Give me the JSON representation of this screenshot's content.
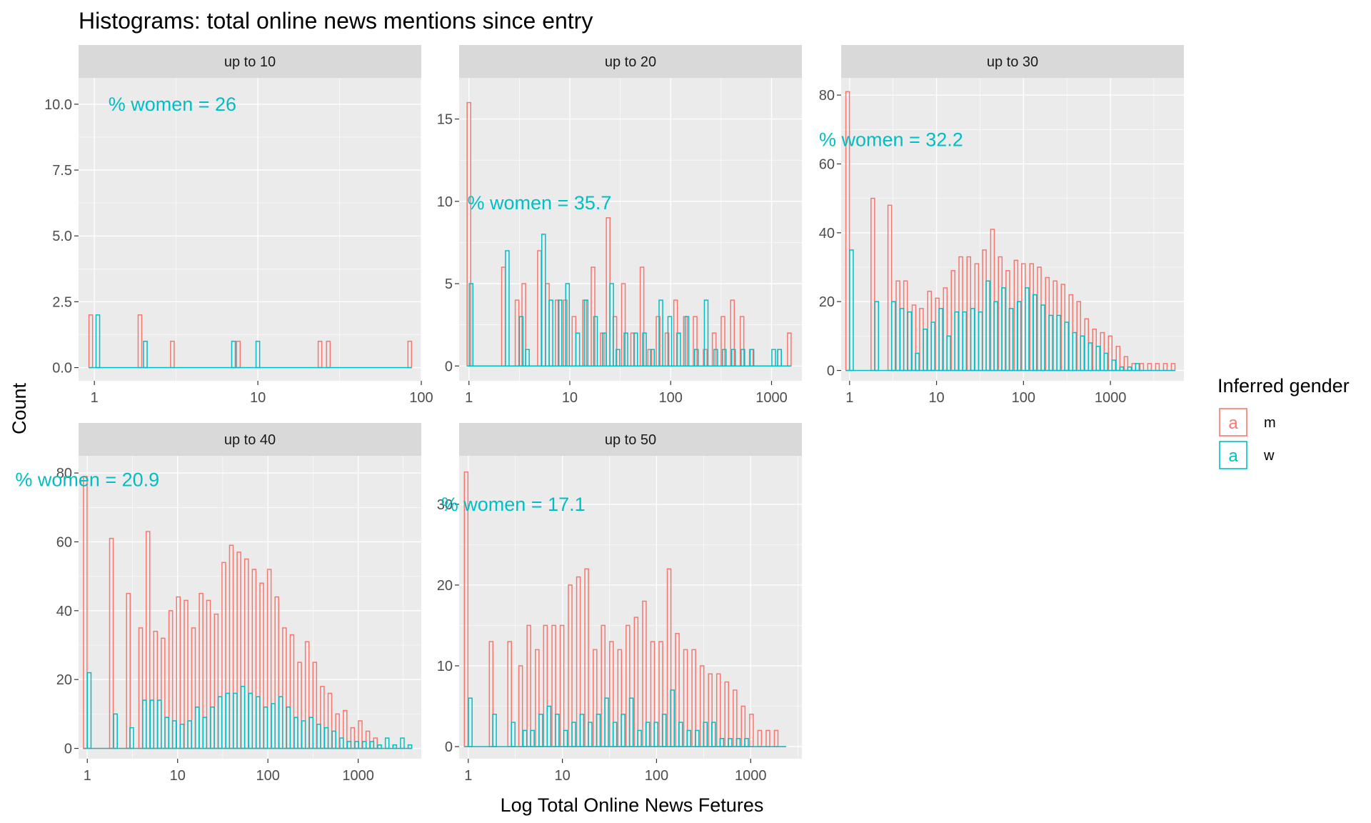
{
  "colors": {
    "m": "#F8766D",
    "w": "#00BFC4"
  },
  "chart_data": {
    "type": "bar",
    "title": "Histograms: total online news mentions since entry",
    "xlabel": "Log Total Online News Fetures",
    "ylabel": "Count",
    "x_scale": "log10",
    "grid": true,
    "legend": {
      "title": "Inferred gender",
      "position": "right",
      "key_glyph": "a",
      "entries": [
        {
          "label": "m",
          "key": "m"
        },
        {
          "label": "w",
          "key": "w"
        }
      ]
    },
    "panels": [
      {
        "strip": "up to 10",
        "annotation": "% women = 26",
        "annotation_at": [
          3,
          10.0
        ],
        "xlim": [
          0.8,
          100
        ],
        "ylim": [
          -0.5,
          11
        ],
        "y_ticks": [
          0.0,
          2.5,
          5.0,
          7.5,
          10.0
        ],
        "y_tick_labels": [
          "0.0",
          "2.5",
          "5.0",
          "7.5",
          "10.0"
        ],
        "x_ticks": [
          1,
          10,
          100
        ],
        "x_tick_labels": [
          "1",
          "10",
          "100"
        ],
        "series": [
          {
            "name": "m",
            "x": [
              0.95,
              1.9,
              3.0,
              7.6,
              24,
              27,
              85
            ],
            "values": [
              2,
              2,
              1,
              1,
              1,
              1,
              1
            ]
          },
          {
            "name": "w",
            "x": [
              1.05,
              2.05,
              7.1,
              10,
              10.5
            ],
            "values": [
              2,
              1,
              1,
              1,
              0
            ]
          }
        ]
      },
      {
        "strip": "up to 20",
        "annotation": "% women = 35.7",
        "annotation_at": [
          5,
          9.9
        ],
        "xlim": [
          0.8,
          2000
        ],
        "ylim": [
          -0.9,
          17.5
        ],
        "y_ticks": [
          0,
          5,
          10,
          15
        ],
        "y_tick_labels": [
          "0",
          "5",
          "10",
          "15"
        ],
        "x_ticks": [
          1,
          10,
          100,
          1000
        ],
        "x_tick_labels": [
          "1",
          "10",
          "100",
          "1000"
        ],
        "series": [
          {
            "name": "m",
            "x": [
              1,
              2.2,
              3,
              3.5,
              5,
              6,
              7.5,
              9,
              11,
              14,
              17,
              21,
              24,
              28,
              34,
              42,
              52,
              62,
              75,
              92,
              112,
              140,
              175,
              220,
              270,
              330,
              410,
              510,
              630,
              780,
              950,
              1200,
              1500
            ],
            "values": [
              16,
              6,
              4,
              5,
              7,
              5,
              4,
              4,
              3,
              4,
              6,
              2,
              9,
              3,
              5,
              2,
              6,
              1,
              3,
              2,
              4,
              3,
              3,
              1,
              2,
              3,
              4,
              3,
              1,
              0,
              0,
              1,
              2
            ]
          },
          {
            "name": "w",
            "x": [
              1.05,
              2.4,
              3.3,
              3.8,
              5.5,
              6.5,
              8,
              9.5,
              12,
              14.5,
              18,
              22,
              26,
              30,
              36,
              45,
              55,
              66,
              80,
              98,
              120,
              145,
              180,
              225,
              280,
              340,
              420,
              520,
              640,
              1050,
              1200
            ],
            "values": [
              5,
              7,
              3,
              1,
              8,
              4,
              4,
              5,
              2,
              4,
              3,
              2,
              5,
              1,
              2,
              2,
              2,
              1,
              4,
              3,
              2,
              3,
              1,
              4,
              1,
              1,
              1,
              1,
              1,
              1,
              1
            ]
          }
        ]
      },
      {
        "strip": "up to 30",
        "annotation": "% women = 32.2",
        "annotation_at": [
          3,
          67
        ],
        "xlim": [
          0.8,
          7000
        ],
        "ylim": [
          -3,
          85
        ],
        "y_ticks": [
          0,
          20,
          40,
          60,
          80
        ],
        "y_tick_labels": [
          "0",
          "20",
          "40",
          "60",
          "80"
        ],
        "x_ticks": [
          1,
          10,
          100,
          1000
        ],
        "x_tick_labels": [
          "1",
          "10",
          "100",
          "1000"
        ],
        "series": [
          {
            "name": "m",
            "x": [
              0.95,
              1.85,
              2.9,
              3.6,
              4.4,
              5.5,
              6.7,
              8.3,
              10.2,
              12.6,
              15.5,
              19,
              23.5,
              29,
              35.5,
              44,
              54,
              66,
              82,
              100,
              124,
              152,
              188,
              231,
              285,
              351,
              432,
              532,
              655,
              807,
              994,
              1224,
              1508,
              1857,
              2288,
              2818,
              3470,
              4275,
              5265
            ],
            "values": [
              81,
              50,
              48,
              26,
              26,
              19,
              18,
              23,
              21,
              24,
              29,
              33,
              33,
              31,
              35,
              41,
              33,
              29,
              32,
              31,
              31,
              30,
              27,
              26,
              25,
              22,
              20,
              15,
              12,
              11,
              10,
              7,
              4,
              2,
              2,
              2,
              2,
              2,
              2
            ]
          },
          {
            "name": "w",
            "x": [
              1.05,
              2.05,
              3.2,
              4.0,
              4.9,
              6.0,
              7.4,
              9.1,
              11.2,
              13.8,
              17,
              21,
              26,
              32,
              39,
              48,
              59,
              72,
              89,
              110,
              135,
              167,
              206,
              254,
              313,
              386,
              475,
              585,
              720,
              887,
              1093,
              1346,
              1658,
              2042
            ],
            "values": [
              35,
              20,
              20,
              18,
              17,
              5,
              12,
              14,
              18,
              10,
              17,
              17,
              18,
              17,
              26,
              20,
              24,
              18,
              20,
              24,
              22,
              19,
              16,
              16,
              14,
              11,
              10,
              8,
              7,
              5,
              3,
              1,
              1,
              2
            ]
          }
        ]
      },
      {
        "strip": "up to 40",
        "annotation": "% women = 20.9",
        "annotation_at": [
          1,
          78
        ],
        "xlim": [
          0.8,
          5000
        ],
        "ylim": [
          -3,
          85
        ],
        "y_ticks": [
          0,
          20,
          40,
          60,
          80
        ],
        "y_tick_labels": [
          "0",
          "20",
          "40",
          "60",
          "80"
        ],
        "x_ticks": [
          1,
          10,
          100,
          1000
        ],
        "x_tick_labels": [
          "1",
          "10",
          "100",
          "1000"
        ],
        "series": [
          {
            "name": "m",
            "x": [
              0.95,
              1.85,
              2.85,
              3.9,
              4.7,
              5.7,
              6.9,
              8.4,
              10.2,
              12.4,
              15,
              18.2,
              22,
              26.8,
              32.5,
              39.4,
              47.8,
              58,
              70.4,
              85.4,
              103.6,
              125.7,
              152.5,
              185,
              224.5,
              272.3,
              330.4,
              400.8,
              486.3,
              590,
              715.8,
              868.4,
              1053.6,
              1278.3,
              1550.9
            ],
            "values": [
              79,
              61,
              45,
              35,
              63,
              34,
              32,
              40,
              44,
              43,
              35,
              45,
              43,
              39,
              54,
              59,
              57,
              55,
              52,
              48,
              52,
              44,
              35,
              33,
              25,
              31,
              25,
              18,
              16,
              10,
              11,
              6,
              8,
              5,
              3
            ]
          },
          {
            "name": "w",
            "x": [
              1.05,
              2.05,
              3.1,
              4.3,
              5.2,
              6.3,
              7.6,
              9.2,
              11.2,
              13.6,
              16.5,
              20,
              24.3,
              29.5,
              35.8,
              43.5,
              52.8,
              64.1,
              77.8,
              94.4,
              114.6,
              139.1,
              168.8,
              204.9,
              248.7,
              301.8,
              366.3,
              444.6,
              539.6,
              654.9,
              794.8,
              964.6,
              1170.7,
              1420.8,
              1724.4,
              2092.8,
              2540,
              3082.7,
              3741.4
            ],
            "values": [
              22,
              10,
              6,
              14,
              14,
              14,
              9,
              8,
              7,
              8,
              12,
              9,
              12,
              15,
              16,
              16,
              18,
              16,
              15,
              12,
              13,
              15,
              12,
              9,
              8,
              9,
              7,
              6,
              5,
              3,
              2,
              2,
              2,
              2,
              1,
              3,
              1,
              3,
              1
            ]
          }
        ]
      },
      {
        "strip": "up to 50",
        "annotation": "% women = 17.1",
        "annotation_at": [
          3,
          30
        ],
        "xlim": [
          0.8,
          3500
        ],
        "ylim": [
          -1.5,
          36
        ],
        "y_ticks": [
          0,
          10,
          20,
          30
        ],
        "y_tick_labels": [
          "0",
          "10",
          "20",
          "30"
        ],
        "x_ticks": [
          1,
          10,
          100,
          1000
        ],
        "x_tick_labels": [
          "1",
          "10",
          "100",
          "1000"
        ],
        "series": [
          {
            "name": "m",
            "x": [
              0.95,
              1.75,
              2.75,
              3.6,
              4.4,
              5.4,
              6.6,
              8.1,
              9.9,
              12.1,
              14.8,
              18.1,
              22.2,
              27.1,
              33.2,
              40.6,
              49.6,
              60.7,
              74.3,
              90.9,
              111.2,
              136,
              166.3,
              203.4,
              248.8,
              304.3,
              372.2,
              455.3,
              556.9,
              681.2,
              833.2,
              1019.2,
              1246.6,
              1524.8,
              1865.1,
              2281.4
            ],
            "values": [
              34,
              13,
              13,
              10,
              15,
              12,
              15,
              15,
              15,
              20,
              21,
              22,
              12,
              15,
              13,
              12,
              15,
              16,
              18,
              13,
              13,
              22,
              14,
              12,
              12,
              10,
              9,
              9,
              8,
              7,
              5,
              4,
              2,
              2,
              2,
              0
            ]
          },
          {
            "name": "w",
            "x": [
              1.05,
              1.9,
              3.0,
              4.0,
              4.8,
              5.9,
              7.2,
              8.8,
              10.8,
              13.2,
              16.1,
              19.7,
              24.1,
              29.5,
              36.1,
              44.1,
              53.9,
              65.9,
              80.6,
              98.6,
              120.6,
              147.5,
              180.4,
              220.6,
              269.8,
              330,
              403.6,
              493.6,
              603.7,
              738.4,
              903.1
            ],
            "values": [
              6,
              4,
              3,
              2,
              2,
              4,
              5,
              4,
              2,
              3,
              4,
              3,
              4,
              6,
              3,
              4,
              6,
              2,
              3,
              3,
              4,
              7,
              3,
              2,
              2,
              3,
              3,
              1,
              1,
              1,
              1
            ]
          }
        ]
      }
    ]
  }
}
